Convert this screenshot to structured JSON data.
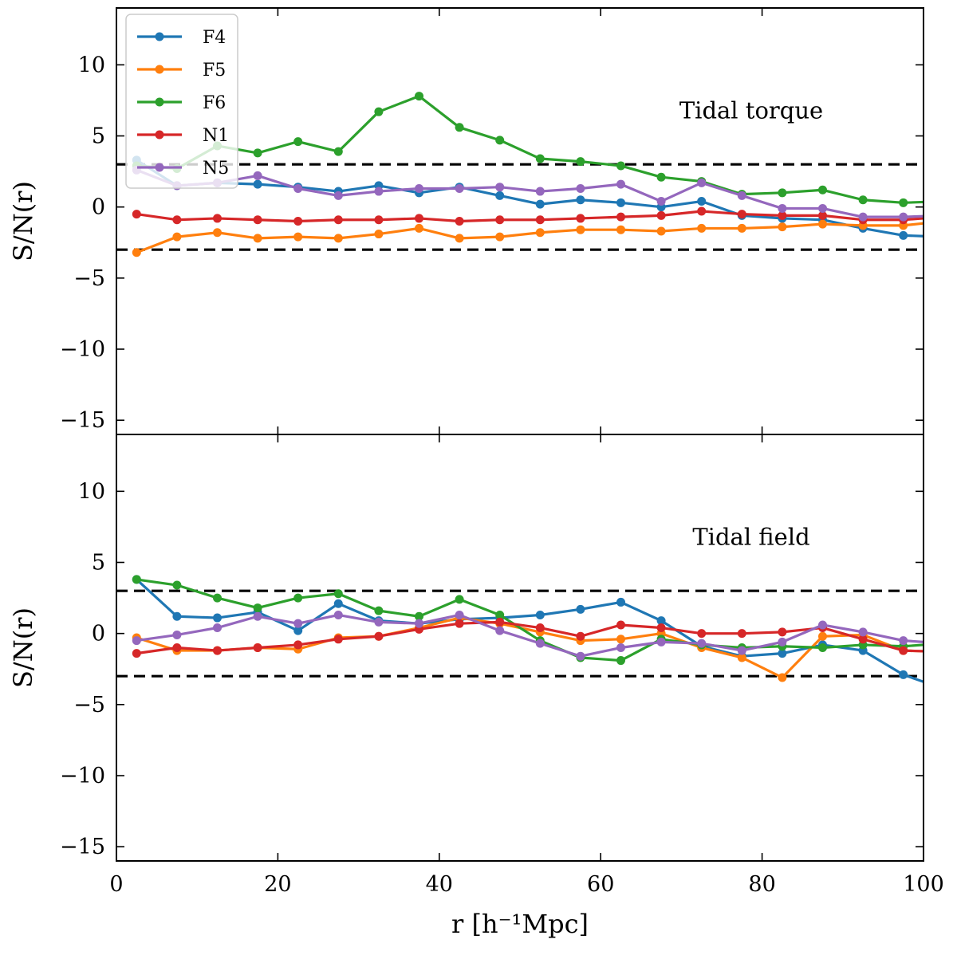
{
  "chart_data": {
    "type": "line",
    "x": [
      2.5,
      7.5,
      12.5,
      17.5,
      22.5,
      27.5,
      32.5,
      37.5,
      42.5,
      47.5,
      52.5,
      57.5,
      62.5,
      67.5,
      72.5,
      77.5,
      82.5,
      87.5,
      92.5,
      97.5,
      100
    ],
    "xlabel": "r [h⁻¹Mpc]",
    "ylabel": "S/N(r)",
    "xlim": [
      0,
      100
    ],
    "ylim": [
      -16,
      14
    ],
    "xticks": [
      "0",
      "20",
      "40",
      "60",
      "80",
      "100"
    ],
    "yticks": [
      "10",
      "5",
      "0",
      "−5",
      "−10",
      "−15"
    ],
    "ytick_values": [
      10,
      5,
      0,
      -5,
      -10,
      -15
    ],
    "xtick_values": [
      0,
      20,
      40,
      60,
      80,
      100
    ],
    "reference_lines": [
      3,
      -3
    ],
    "legend_position": "top-left",
    "colors": {
      "F4": "#1f77b4",
      "F5": "#ff7f0e",
      "F6": "#2ca02c",
      "N1": "#d62728",
      "N5": "#9467bd"
    },
    "panels": [
      {
        "label": "Tidal torque",
        "series": [
          {
            "name": "F4",
            "values": [
              3.3,
              1.5,
              1.7,
              1.6,
              1.4,
              1.1,
              1.5,
              1.0,
              1.4,
              0.8,
              0.2,
              0.5,
              0.3,
              0.0,
              0.4,
              -0.6,
              -0.8,
              -0.9,
              -1.5,
              -2.0,
              -2.05
            ]
          },
          {
            "name": "F5",
            "values": [
              -3.2,
              -2.1,
              -1.8,
              -2.2,
              -2.1,
              -2.2,
              -1.9,
              -1.5,
              -2.2,
              -2.1,
              -1.8,
              -1.6,
              -1.6,
              -1.7,
              -1.5,
              -1.5,
              -1.4,
              -1.2,
              -1.3,
              -1.3,
              -1.15
            ]
          },
          {
            "name": "F6",
            "values": [
              2.9,
              2.7,
              4.3,
              3.8,
              4.6,
              3.9,
              6.7,
              7.8,
              5.6,
              4.7,
              3.4,
              3.2,
              2.9,
              2.1,
              1.8,
              0.9,
              1.0,
              1.2,
              0.5,
              0.3,
              0.35
            ]
          },
          {
            "name": "N1",
            "values": [
              -0.5,
              -0.9,
              -0.8,
              -0.9,
              -1.0,
              -0.9,
              -0.9,
              -0.8,
              -1.0,
              -0.9,
              -0.9,
              -0.8,
              -0.7,
              -0.6,
              -0.3,
              -0.5,
              -0.6,
              -0.6,
              -0.9,
              -0.9,
              -0.8
            ]
          },
          {
            "name": "N5",
            "values": [
              2.6,
              1.5,
              1.7,
              2.2,
              1.3,
              0.8,
              1.1,
              1.3,
              1.3,
              1.4,
              1.1,
              1.3,
              1.6,
              0.4,
              1.7,
              0.8,
              -0.1,
              -0.1,
              -0.7,
              -0.7,
              -0.65
            ]
          }
        ]
      },
      {
        "label": "Tidal field",
        "series": [
          {
            "name": "F4",
            "values": [
              3.8,
              1.2,
              1.1,
              1.5,
              0.2,
              2.1,
              0.9,
              0.7,
              1.0,
              1.1,
              1.3,
              1.7,
              2.2,
              0.9,
              -0.9,
              -1.6,
              -1.4,
              -0.8,
              -1.2,
              -2.9,
              -3.4
            ]
          },
          {
            "name": "F5",
            "values": [
              -0.3,
              -1.2,
              -1.2,
              -1.0,
              -1.1,
              -0.3,
              -0.2,
              0.4,
              1.1,
              0.7,
              0.1,
              -0.5,
              -0.4,
              0.0,
              -1.0,
              -1.7,
              -3.1,
              -0.2,
              -0.1,
              -1.2,
              -1.25
            ]
          },
          {
            "name": "F6",
            "values": [
              3.8,
              3.4,
              2.5,
              1.8,
              2.5,
              2.8,
              1.6,
              1.2,
              2.4,
              1.3,
              -0.5,
              -1.7,
              -1.9,
              -0.4,
              -0.8,
              -1.0,
              -0.9,
              -1.0,
              -0.8,
              -0.9,
              -0.8
            ]
          },
          {
            "name": "N1",
            "values": [
              -1.4,
              -1.0,
              -1.2,
              -1.0,
              -0.8,
              -0.4,
              -0.2,
              0.3,
              0.7,
              0.8,
              0.4,
              -0.2,
              0.6,
              0.4,
              0.0,
              0.0,
              0.1,
              0.4,
              -0.4,
              -1.2,
              -1.25
            ]
          },
          {
            "name": "N5",
            "values": [
              -0.5,
              -0.1,
              0.4,
              1.2,
              0.7,
              1.3,
              0.8,
              0.7,
              1.3,
              0.2,
              -0.7,
              -1.6,
              -1.0,
              -0.6,
              -0.7,
              -1.2,
              -0.6,
              0.6,
              0.1,
              -0.5,
              -0.6
            ]
          }
        ]
      }
    ]
  }
}
